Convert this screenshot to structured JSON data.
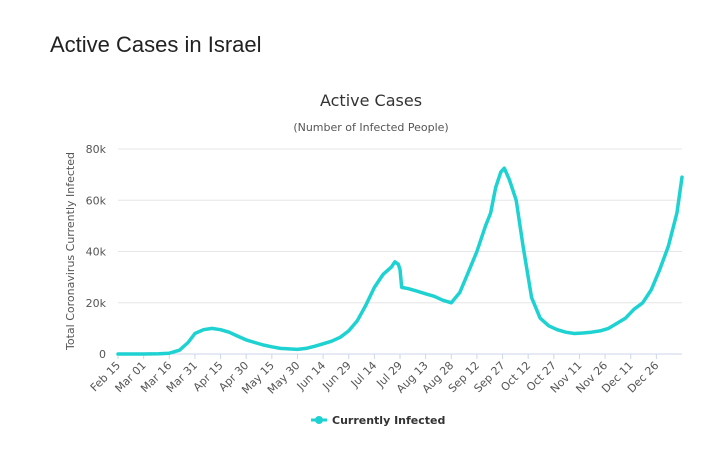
{
  "page": {
    "title": "Active Cases in Israel"
  },
  "chart_data": {
    "type": "line",
    "title": "Active Cases",
    "subtitle": "(Number of Infected People)",
    "xlabel": "",
    "ylabel": "Total Coronavirus Currently Infected",
    "ylim": [
      0,
      80000
    ],
    "yticks": [
      0,
      20000,
      40000,
      60000,
      80000
    ],
    "ytick_labels": [
      "0",
      "20k",
      "40k",
      "60k",
      "80k"
    ],
    "x_start": "Feb 15",
    "x_end": "Jan 10",
    "xtick_labels": [
      "Feb 15",
      "Mar 01",
      "Mar 16",
      "Mar 31",
      "Apr 15",
      "Apr 30",
      "May 15",
      "May 30",
      "Jun 14",
      "Jun 29",
      "Jul 14",
      "Jul 29",
      "Aug 13",
      "Aug 28",
      "Sep 12",
      "Sep 27",
      "Oct 12",
      "Oct 27",
      "Nov 11",
      "Nov 26",
      "Dec 11",
      "Dec 26"
    ],
    "legend": "bottom-center",
    "series": [
      {
        "name": "Currently Infected",
        "color": "#1ed2d2",
        "x": [
          "Feb 15",
          "Mar 01",
          "Mar 10",
          "Mar 16",
          "Mar 22",
          "Mar 27",
          "Mar 31",
          "Apr 05",
          "Apr 10",
          "Apr 15",
          "Apr 20",
          "Apr 25",
          "Apr 30",
          "May 05",
          "May 10",
          "May 15",
          "May 20",
          "May 25",
          "May 30",
          "Jun 04",
          "Jun 09",
          "Jun 14",
          "Jun 19",
          "Jun 24",
          "Jun 29",
          "Jul 04",
          "Jul 09",
          "Jul 14",
          "Jul 19",
          "Jul 24",
          "Jul 26",
          "Jul 28",
          "Jul 29",
          "Jul 30",
          "Aug 03",
          "Aug 08",
          "Aug 13",
          "Aug 18",
          "Aug 23",
          "Aug 28",
          "Sep 02",
          "Sep 07",
          "Sep 12",
          "Sep 17",
          "Sep 20",
          "Sep 23",
          "Sep 26",
          "Sep 28",
          "Oct 01",
          "Oct 05",
          "Oct 09",
          "Oct 14",
          "Oct 19",
          "Oct 24",
          "Oct 29",
          "Nov 03",
          "Nov 08",
          "Nov 13",
          "Nov 18",
          "Nov 23",
          "Nov 28",
          "Dec 03",
          "Dec 08",
          "Dec 13",
          "Dec 18",
          "Dec 23",
          "Dec 28",
          "Jan 02",
          "Jan 07",
          "Jan 10"
        ],
        "values": [
          0,
          0,
          100,
          300,
          1500,
          4500,
          8000,
          9500,
          10000,
          9500,
          8500,
          7000,
          5500,
          4500,
          3500,
          2800,
          2200,
          2000,
          1800,
          2200,
          3000,
          4000,
          5000,
          6500,
          9000,
          13000,
          19000,
          26000,
          31000,
          34000,
          36000,
          35000,
          33000,
          26000,
          25500,
          24500,
          23500,
          22500,
          21000,
          20000,
          24000,
          32000,
          40000,
          50000,
          55000,
          65000,
          71000,
          72500,
          68000,
          60000,
          42000,
          22000,
          14000,
          11000,
          9500,
          8500,
          8000,
          8200,
          8500,
          9000,
          10000,
          12000,
          14000,
          17500,
          20000,
          25000,
          33000,
          42000,
          55000,
          69000
        ]
      }
    ]
  }
}
